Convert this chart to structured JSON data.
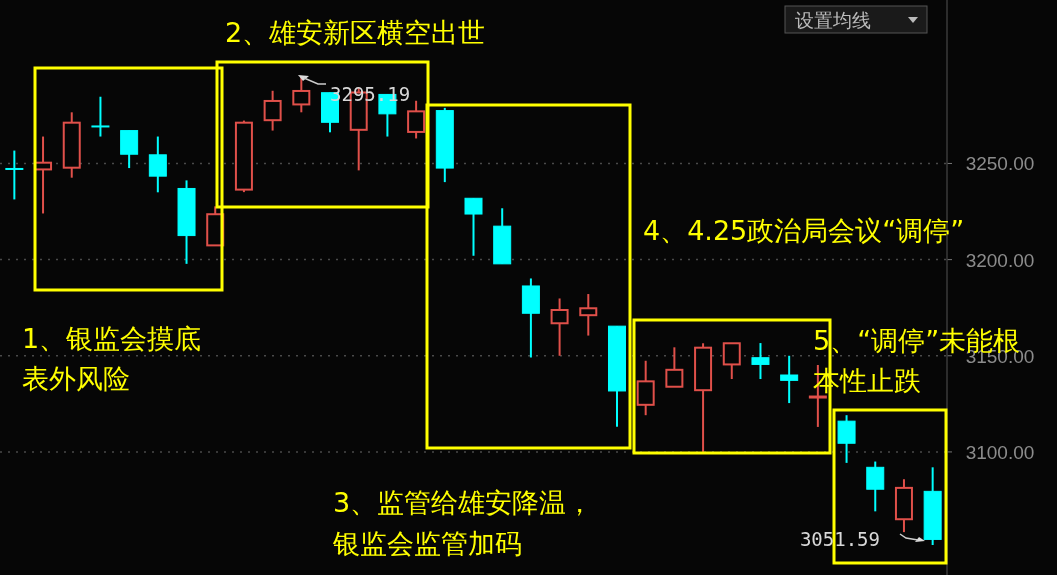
{
  "chart_data": {
    "type": "candlestick",
    "categories": [
      null,
      null,
      null,
      null,
      null,
      null,
      null,
      null,
      null,
      null,
      null,
      null,
      null,
      null,
      null,
      null,
      null,
      null,
      null,
      null,
      null,
      null,
      null,
      null,
      null,
      null,
      null,
      null,
      null,
      null,
      null,
      null,
      null
    ],
    "ohlc": [
      [
        3247.4,
        3256.7,
        3231.3,
        3247.0
      ],
      [
        3246.9,
        3264.0,
        3224.0,
        3250.4
      ],
      [
        3247.8,
        3276.6,
        3242.6,
        3271.2
      ],
      [
        3269.5,
        3284.7,
        3264.0,
        3269.0
      ],
      [
        3267.1,
        3267.1,
        3247.6,
        3254.8
      ],
      [
        3254.5,
        3264.0,
        3235.0,
        3243.4
      ],
      [
        3237.0,
        3241.2,
        3197.8,
        3212.5
      ],
      [
        3207.4,
        3227.7,
        3207.4,
        3223.6
      ],
      [
        3236.4,
        3272.3,
        3235.1,
        3271.2
      ],
      [
        3272.5,
        3287.8,
        3267.1,
        3282.5
      ],
      [
        3280.7,
        3295.19,
        3276.6,
        3287.7
      ],
      [
        3286.8,
        3286.8,
        3266.2,
        3271.4
      ],
      [
        3267.5,
        3289.5,
        3246.4,
        3286.9
      ],
      [
        3285.9,
        3285.9,
        3264.0,
        3275.8
      ],
      [
        3266.4,
        3282.6,
        3263.0,
        3277.1
      ],
      [
        3277.5,
        3278.9,
        3240.3,
        3247.6
      ],
      [
        3231.9,
        3231.9,
        3202.0,
        3223.7
      ],
      [
        3217.4,
        3226.7,
        3197.8,
        3197.8
      ],
      [
        3186.3,
        3190.2,
        3149.1,
        3172.1
      ],
      [
        3166.9,
        3179.8,
        3150.0,
        3173.8
      ],
      [
        3171.1,
        3182.1,
        3160.5,
        3174.7
      ],
      [
        3165.4,
        3165.4,
        3113.1,
        3131.7
      ],
      [
        3124.5,
        3147.4,
        3119.1,
        3136.7
      ],
      [
        3133.9,
        3154.4,
        3133.9,
        3142.7
      ],
      [
        3132.1,
        3156.5,
        3100.0,
        3154.2
      ],
      [
        3145.5,
        3156.5,
        3137.9,
        3156.5
      ],
      [
        3149.0,
        3156.6,
        3137.9,
        3145.5
      ],
      [
        3140.0,
        3150.0,
        3125.4,
        3137.2
      ],
      [
        3128.3,
        3145.2,
        3113.0,
        3128.8
      ],
      [
        3116.0,
        3119.1,
        3094.3,
        3104.5
      ],
      [
        3092.0,
        3095.0,
        3069.1,
        3080.6
      ],
      [
        3065.0,
        3085.8,
        3058.3,
        3081.3
      ],
      [
        3079.5,
        3092.0,
        3051.59,
        3054.5
      ]
    ],
    "colors": [
      "#00ffff",
      "#e0504a",
      "#e0504a",
      "#00ffff",
      "#00ffff",
      "#00ffff",
      "#00ffff",
      "#e0504a",
      "#e0504a",
      "#e0504a",
      "#e0504a",
      "#00ffff",
      "#e0504a",
      "#00ffff",
      "#e0504a",
      "#00ffff",
      "#00ffff",
      "#00ffff",
      "#00ffff",
      "#e0504a",
      "#e0504a",
      "#00ffff",
      "#e0504a",
      "#e0504a",
      "#e0504a",
      "#e0504a",
      "#00ffff",
      "#00ffff",
      "#e0504a",
      "#00ffff",
      "#00ffff",
      "#e0504a",
      "#00ffff"
    ],
    "ylim": [
      3036,
      3335
    ],
    "yticks": [
      {
        "value": 3250,
        "label": "3250.00"
      },
      {
        "value": 3200,
        "label": "3200.00"
      },
      {
        "value": 3150,
        "label": "3150.00"
      },
      {
        "value": 3100,
        "label": "3100.00"
      }
    ],
    "grid": "y",
    "annotations": [
      "1、银监会摸底表外风险",
      "2、雄安新区横空出世",
      "3、监管给雄安降温，银监会监管加码",
      "4、4.25政治局会议“调停”",
      "5、“调停”未能根本性止跌",
      "3295.19",
      "3051.59",
      "设置均线"
    ]
  }
}
